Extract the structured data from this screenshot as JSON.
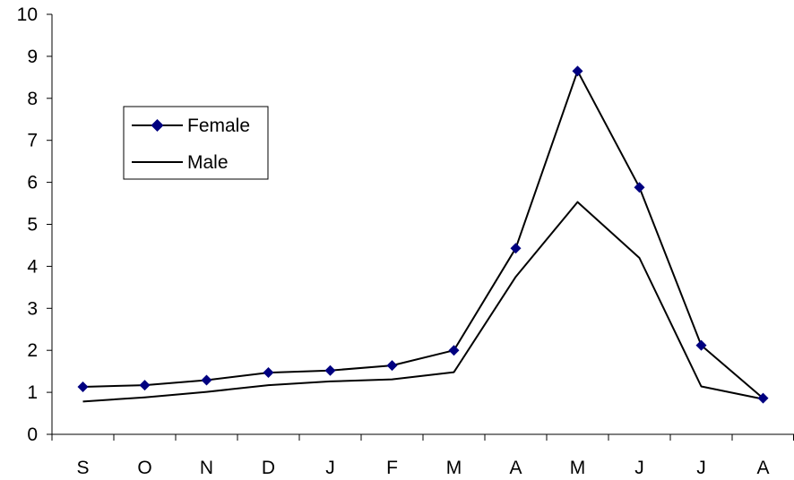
{
  "chart_data": {
    "type": "line",
    "categories": [
      "S",
      "O",
      "N",
      "D",
      "J",
      "F",
      "M",
      "A",
      "M",
      "J",
      "J",
      "A"
    ],
    "ylim": [
      0,
      10
    ],
    "yticks": [
      "0",
      "1",
      "2",
      "3",
      "4",
      "5",
      "6",
      "7",
      "8",
      "9",
      "10"
    ],
    "grid": false,
    "legend_position": "left",
    "series": [
      {
        "name": "Female",
        "values": [
          1.13,
          1.17,
          1.29,
          1.47,
          1.52,
          1.64,
          2.0,
          4.43,
          8.65,
          5.88,
          2.12,
          0.86
        ],
        "color": "#000080",
        "marker": "diamond"
      },
      {
        "name": "Male",
        "values": [
          0.78,
          0.88,
          1.01,
          1.17,
          1.26,
          1.31,
          1.48,
          3.75,
          5.53,
          4.2,
          1.14,
          0.84
        ],
        "color": "#000000",
        "marker": "none"
      }
    ]
  }
}
